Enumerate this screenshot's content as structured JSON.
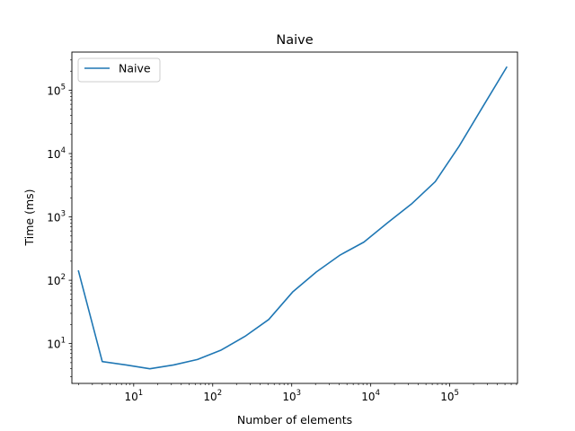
{
  "chart_data": {
    "type": "line",
    "title": "Naive",
    "xlabel": "Number of elements",
    "ylabel": "Time (ms)",
    "xscale": "log",
    "yscale": "log",
    "xlim": [
      1.65,
      720000
    ],
    "ylim": [
      2.35,
      400000
    ],
    "xticks": [
      {
        "value": 10,
        "base": "10",
        "exp": "1"
      },
      {
        "value": 100,
        "base": "10",
        "exp": "2"
      },
      {
        "value": 1000,
        "base": "10",
        "exp": "3"
      },
      {
        "value": 10000,
        "base": "10",
        "exp": "4"
      },
      {
        "value": 100000,
        "base": "10",
        "exp": "5"
      }
    ],
    "yticks": [
      {
        "value": 10,
        "base": "10",
        "exp": "1"
      },
      {
        "value": 100,
        "base": "10",
        "exp": "2"
      },
      {
        "value": 1000,
        "base": "10",
        "exp": "3"
      },
      {
        "value": 10000,
        "base": "10",
        "exp": "4"
      },
      {
        "value": 100000,
        "base": "10",
        "exp": "5"
      }
    ],
    "grid": false,
    "legend_position": "top-left",
    "series": [
      {
        "name": "Naive",
        "color": "#1f77b4",
        "x": [
          2,
          4,
          8,
          16,
          32,
          64,
          128,
          256,
          512,
          1024,
          2048,
          4096,
          8192,
          16384,
          32768,
          65536,
          131072,
          262144,
          524288
        ],
        "y": [
          140,
          5.2,
          4.6,
          4.0,
          4.6,
          5.6,
          7.9,
          13,
          24,
          65,
          135,
          250,
          400,
          810,
          1600,
          3600,
          13000,
          55000,
          230000
        ]
      }
    ]
  }
}
